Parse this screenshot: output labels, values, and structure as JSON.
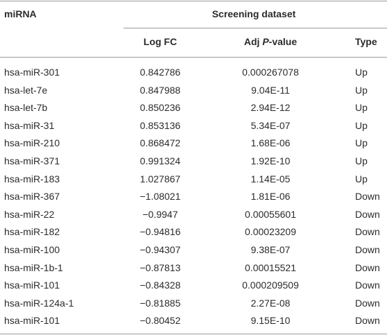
{
  "header": {
    "first": "miRNA",
    "group": "Screening dataset",
    "columns": [
      "Log FC",
      [
        "Adj ",
        "P",
        "-value"
      ],
      "Type"
    ]
  },
  "table": {
    "rows": [
      [
        "hsa-miR-301",
        "0.842786",
        "0.000267078",
        "Up"
      ],
      [
        "hsa-let-7e",
        "0.847988",
        "9.04E-11",
        "Up"
      ],
      [
        "hsa-let-7b",
        "0.850236",
        "2.94E-12",
        "Up"
      ],
      [
        "hsa-miR-31",
        "0.853136",
        "5.34E-07",
        "Up"
      ],
      [
        "hsa-miR-210",
        "0.868472",
        "1.68E-06",
        "Up"
      ],
      [
        "hsa-miR-371",
        "0.991324",
        "1.92E-10",
        "Up"
      ],
      [
        "hsa-miR-183",
        "1.027867",
        "1.14E-05",
        "Up"
      ],
      [
        "hsa-miR-367",
        "−1.08021",
        "1.81E-06",
        "Down"
      ],
      [
        "hsa-miR-22",
        "−0.9947",
        "0.00055601",
        "Down"
      ],
      [
        "hsa-miR-182",
        "−0.94816",
        "0.00023209",
        "Down"
      ],
      [
        "hsa-miR-100",
        "−0.94307",
        "9.38E-07",
        "Down"
      ],
      [
        "hsa-miR-1b-1",
        "−0.87813",
        "0.00015521",
        "Down"
      ],
      [
        "hsa-miR-101",
        "−0.84328",
        "0.000209509",
        "Down"
      ],
      [
        "hsa-miR-124a-1",
        "−0.81885",
        "2.27E-08",
        "Down"
      ],
      [
        "hsa-miR-101",
        "−0.80452",
        "9.15E-10",
        "Down"
      ]
    ]
  }
}
